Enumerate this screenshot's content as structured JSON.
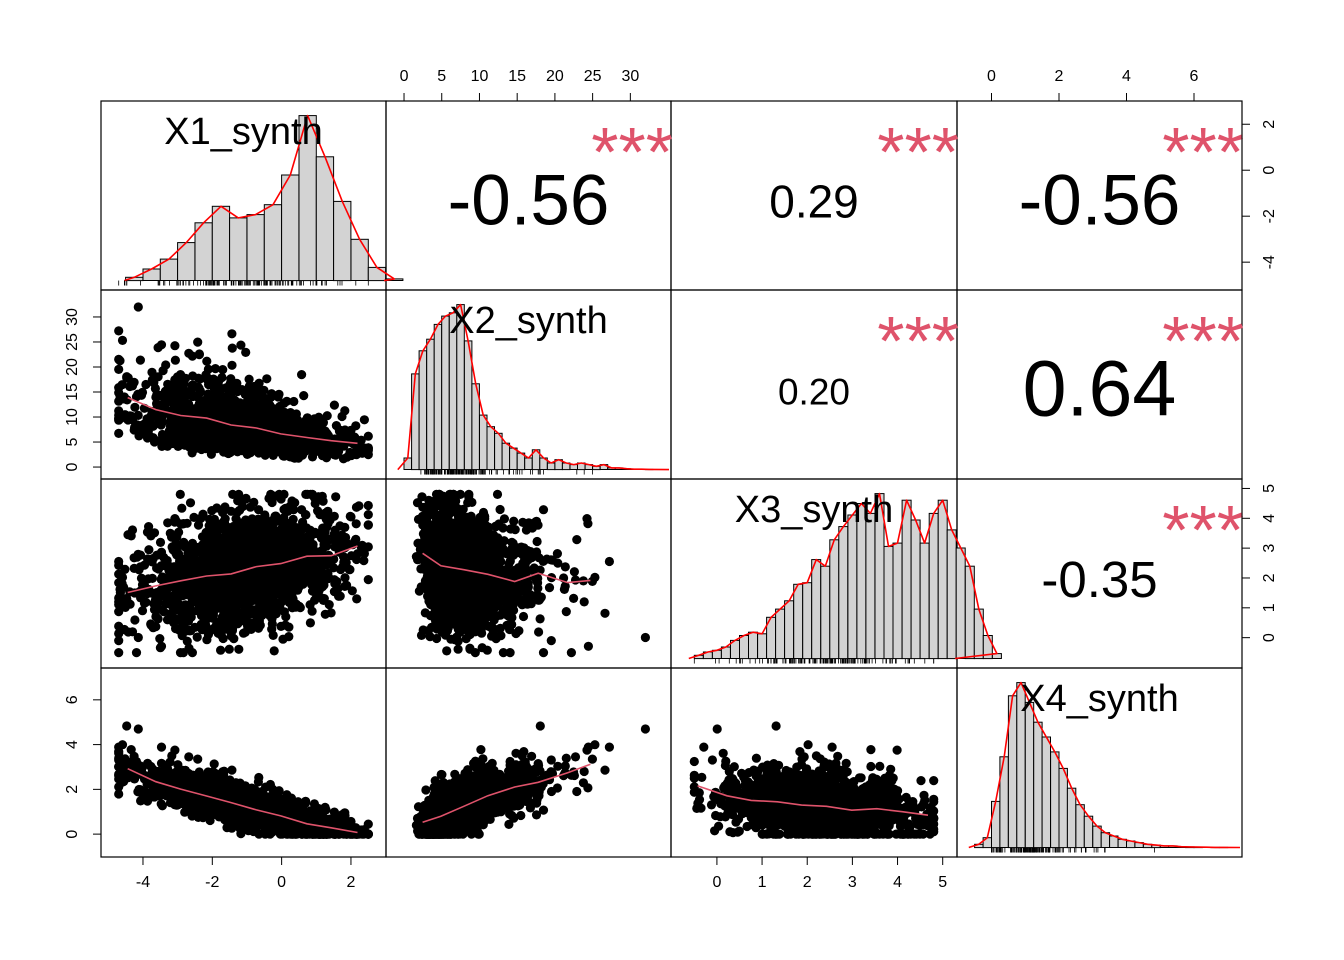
{
  "chart_data": {
    "type": "scatterplot-matrix",
    "method": "correlation matrix (pearson)",
    "variables": [
      "X1_synth",
      "X2_synth",
      "X3_synth",
      "X4_synth"
    ],
    "ranges": {
      "X1_synth": [
        -4.8,
        2.6
      ],
      "X2_synth": [
        -0.5,
        33.5
      ],
      "X3_synth": [
        -0.7,
        5.0
      ],
      "X4_synth": [
        -0.6,
        7.0
      ]
    },
    "ticks": {
      "X1_synth": {
        "values": [
          -4,
          -2,
          0,
          2
        ],
        "labels": [
          "-4",
          "-2",
          "0",
          "2"
        ]
      },
      "X2_synth": {
        "values": [
          0,
          5,
          10,
          15,
          20,
          25,
          30
        ],
        "labels": [
          "0",
          "5",
          "10",
          "15",
          "20",
          "25",
          "30"
        ]
      },
      "X3_synth": {
        "values": [
          0,
          1,
          2,
          3,
          4,
          5
        ],
        "labels": [
          "0",
          "1",
          "2",
          "3",
          "4",
          "5"
        ]
      },
      "X4_synth": {
        "values": [
          0,
          2,
          4,
          6
        ],
        "labels": [
          "0",
          "2",
          "4",
          "6"
        ]
      }
    },
    "correlations": [
      {
        "row": 0,
        "col": 1,
        "value": "-0.56",
        "stars": "***"
      },
      {
        "row": 0,
        "col": 2,
        "value": "0.29",
        "stars": "***"
      },
      {
        "row": 0,
        "col": 3,
        "value": "-0.56",
        "stars": "***"
      },
      {
        "row": 1,
        "col": 2,
        "value": "0.20",
        "stars": "***"
      },
      {
        "row": 1,
        "col": 3,
        "value": "0.64",
        "stars": "***"
      },
      {
        "row": 2,
        "col": 3,
        "value": "-0.35",
        "stars": "***"
      }
    ],
    "histograms": [
      {
        "variable": "X1_synth",
        "breaks_start": -4.5,
        "bin_width": 0.5,
        "heights": [
          0.02,
          0.07,
          0.13,
          0.23,
          0.35,
          0.45,
          0.38,
          0.4,
          0.46,
          0.64,
          1.0,
          0.75,
          0.48,
          0.25,
          0.08,
          0.01
        ]
      },
      {
        "variable": "X2_synth",
        "breaks_start": 0,
        "bin_width": 1,
        "heights": [
          0.07,
          0.58,
          0.72,
          0.79,
          0.88,
          0.93,
          0.95,
          1.0,
          0.78,
          0.52,
          0.33,
          0.26,
          0.22,
          0.16,
          0.13,
          0.1,
          0.07,
          0.12,
          0.07,
          0.04,
          0.06,
          0.04,
          0.03,
          0.04,
          0.03,
          0.02,
          0.03,
          0.01,
          0.01,
          0.005,
          0.002,
          0.002,
          0.001
        ]
      },
      {
        "variable": "X3_synth",
        "breaks_start": -0.5,
        "bin_width": 0.2,
        "heights": [
          0.02,
          0.04,
          0.05,
          0.07,
          0.11,
          0.14,
          0.16,
          0.15,
          0.25,
          0.3,
          0.35,
          0.45,
          0.46,
          0.6,
          0.56,
          0.72,
          0.8,
          0.87,
          0.94,
          0.88,
          1.0,
          0.68,
          0.7,
          0.96,
          0.84,
          0.7,
          0.88,
          0.96,
          0.78,
          0.67,
          0.56,
          0.3,
          0.14,
          0.03
        ]
      },
      {
        "variable": "X4_synth",
        "breaks_start": -0.5,
        "bin_width": 0.25,
        "heights": [
          0.02,
          0.06,
          0.28,
          0.55,
          0.92,
          1.0,
          0.88,
          0.76,
          0.67,
          0.58,
          0.48,
          0.36,
          0.26,
          0.19,
          0.13,
          0.09,
          0.07,
          0.05,
          0.04,
          0.03,
          0.02,
          0.015,
          0.01,
          0.01,
          0.005,
          0.004,
          0.003,
          0.002,
          0.001,
          0.001
        ]
      }
    ]
  }
}
